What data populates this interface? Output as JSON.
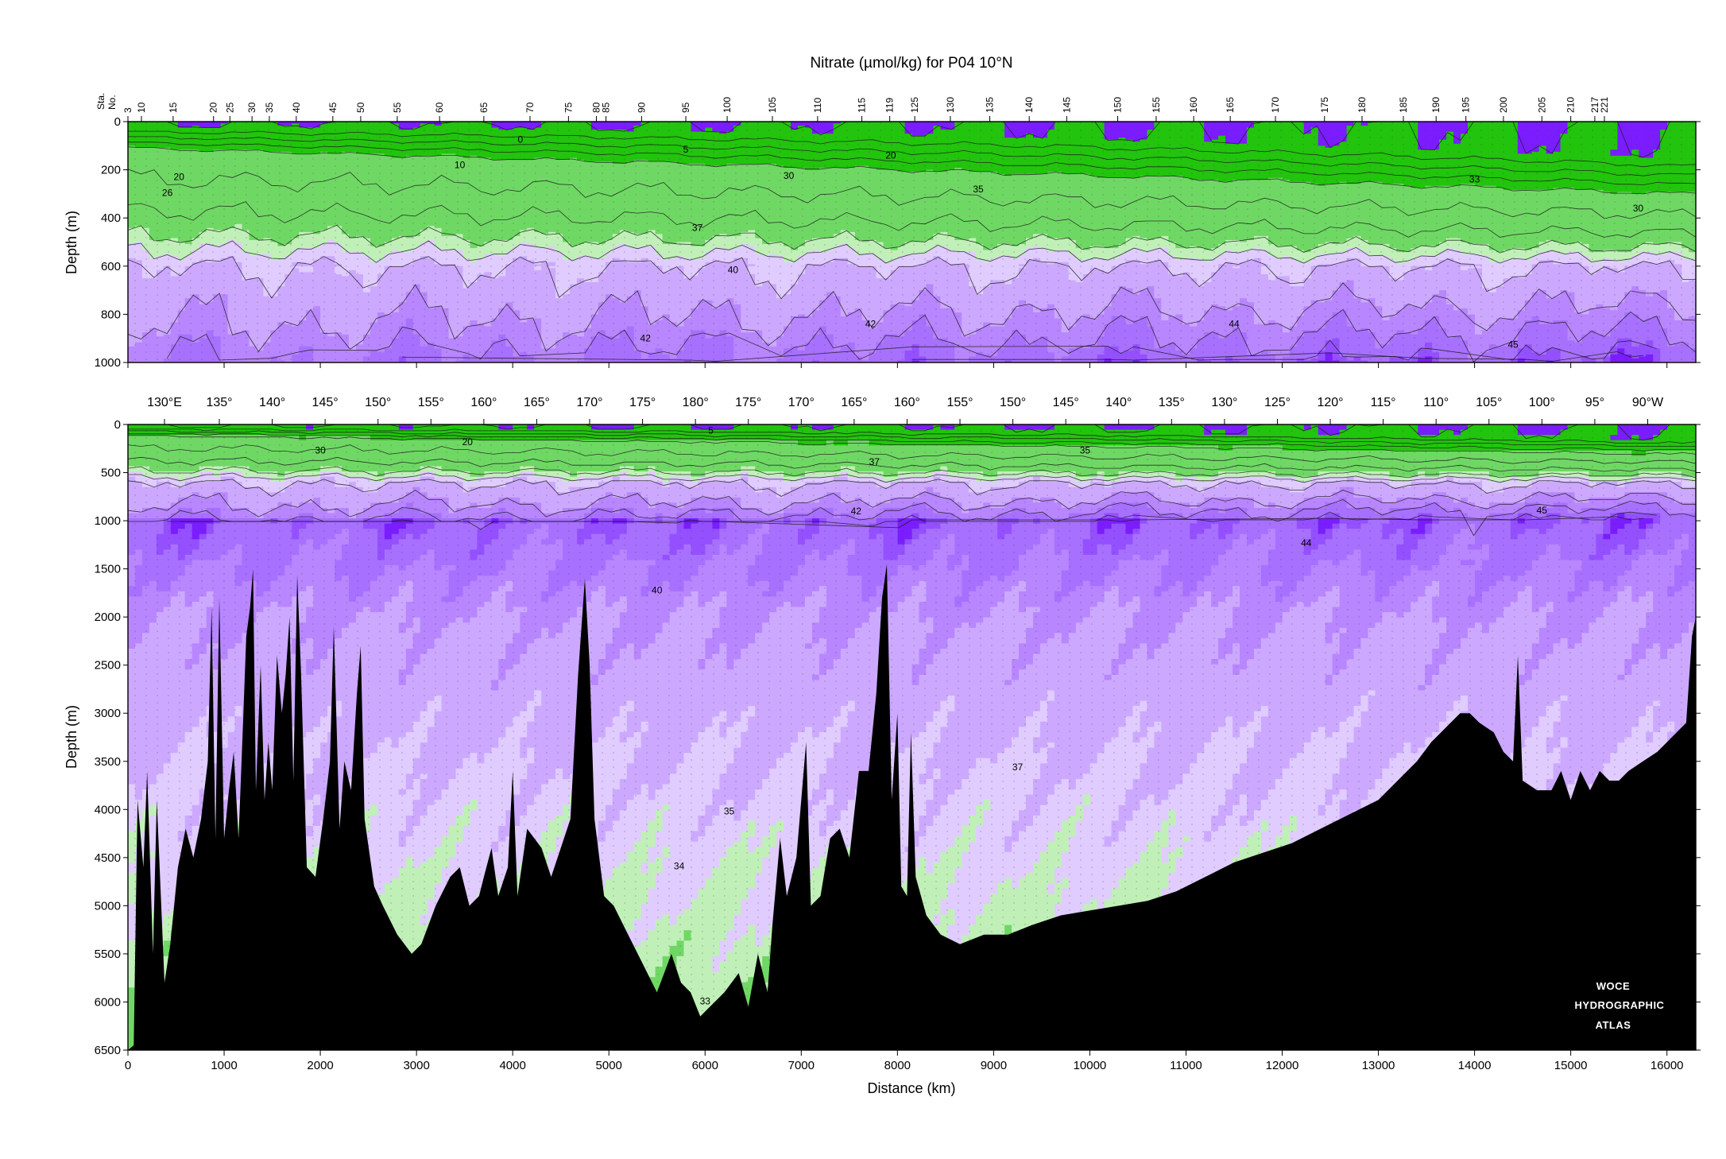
{
  "chart_data": {
    "type": "contour section",
    "title": "Nitrate (µmol/kg) for P04 10°N",
    "xlabel": "Distance (km)",
    "ylabel": "Depth (m)",
    "station_header": [
      "Sta.",
      "No."
    ],
    "stations": [
      {
        "label": "3",
        "km": 0
      },
      {
        "label": "10",
        "km": 140
      },
      {
        "label": "15",
        "km": 470
      },
      {
        "label": "20",
        "km": 890
      },
      {
        "label": "25",
        "km": 1060
      },
      {
        "label": "30",
        "km": 1290
      },
      {
        "label": "35",
        "km": 1470
      },
      {
        "label": "40",
        "km": 1750
      },
      {
        "label": "45",
        "km": 2130
      },
      {
        "label": "50",
        "km": 2420
      },
      {
        "label": "55",
        "km": 2800
      },
      {
        "label": "60",
        "km": 3240
      },
      {
        "label": "65",
        "km": 3700
      },
      {
        "label": "70",
        "km": 4180
      },
      {
        "label": "75",
        "km": 4580
      },
      {
        "label": "80",
        "km": 4870
      },
      {
        "label": "85",
        "km": 4970
      },
      {
        "label": "90",
        "km": 5340
      },
      {
        "label": "95",
        "km": 5800
      },
      {
        "label": "100",
        "km": 6230
      },
      {
        "label": "105",
        "km": 6700
      },
      {
        "label": "110",
        "km": 7170
      },
      {
        "label": "115",
        "km": 7630
      },
      {
        "label": "119",
        "km": 7920
      },
      {
        "label": "125",
        "km": 8180
      },
      {
        "label": "130",
        "km": 8550
      },
      {
        "label": "135",
        "km": 8960
      },
      {
        "label": "140",
        "km": 9370
      },
      {
        "label": "145",
        "km": 9760
      },
      {
        "label": "150",
        "km": 10290
      },
      {
        "label": "155",
        "km": 10690
      },
      {
        "label": "160",
        "km": 11080
      },
      {
        "label": "165",
        "km": 11460
      },
      {
        "label": "170",
        "km": 11930
      },
      {
        "label": "175",
        "km": 12440
      },
      {
        "label": "180",
        "km": 12830
      },
      {
        "label": "185",
        "km": 13260
      },
      {
        "label": "190",
        "km": 13600
      },
      {
        "label": "195",
        "km": 13910
      },
      {
        "label": "200",
        "km": 14300
      },
      {
        "label": "205",
        "km": 14700
      },
      {
        "label": "210",
        "km": 15000
      },
      {
        "label": "217",
        "km": 15250
      },
      {
        "label": "221",
        "km": 15350
      }
    ],
    "longitudes": [
      {
        "label": "130°E",
        "km": 380
      },
      {
        "label": "135°",
        "km": 950
      },
      {
        "label": "140°",
        "km": 1500
      },
      {
        "label": "145°",
        "km": 2050
      },
      {
        "label": "150°",
        "km": 2600
      },
      {
        "label": "155°",
        "km": 3150
      },
      {
        "label": "160°",
        "km": 3700
      },
      {
        "label": "165°",
        "km": 4250
      },
      {
        "label": "170°",
        "km": 4800
      },
      {
        "label": "175°",
        "km": 5350
      },
      {
        "label": "180°",
        "km": 5900
      },
      {
        "label": "175°",
        "km": 6450
      },
      {
        "label": "170°",
        "km": 7000
      },
      {
        "label": "165°",
        "km": 7550
      },
      {
        "label": "160°",
        "km": 8100
      },
      {
        "label": "155°",
        "km": 8650
      },
      {
        "label": "150°",
        "km": 9200
      },
      {
        "label": "145°",
        "km": 9750
      },
      {
        "label": "140°",
        "km": 10300
      },
      {
        "label": "135°",
        "km": 10850
      },
      {
        "label": "130°",
        "km": 11400
      },
      {
        "label": "125°",
        "km": 11950
      },
      {
        "label": "120°",
        "km": 12500
      },
      {
        "label": "115°",
        "km": 13050
      },
      {
        "label": "110°",
        "km": 13600
      },
      {
        "label": "105°",
        "km": 14150
      },
      {
        "label": "100°",
        "km": 14700
      },
      {
        "label": "95°",
        "km": 15250
      },
      {
        "label": "90°W",
        "km": 15800
      }
    ],
    "xlim": [
      0,
      16300
    ],
    "xticks": [
      0,
      1000,
      2000,
      3000,
      4000,
      5000,
      6000,
      7000,
      8000,
      9000,
      10000,
      11000,
      12000,
      13000,
      14000,
      15000,
      16000
    ],
    "panels": [
      {
        "name": "upper",
        "ylim": [
          0,
          1000
        ],
        "yticks": [
          0,
          200,
          400,
          600,
          800,
          1000
        ]
      },
      {
        "name": "lower",
        "ylim": [
          0,
          6500
        ],
        "yticks": [
          0,
          500,
          1000,
          1500,
          2000,
          2500,
          3000,
          3500,
          4000,
          4500,
          5000,
          5500,
          6000,
          6500
        ]
      }
    ],
    "color_bands": [
      {
        "range": [
          0,
          20
        ],
        "color": "#22c40d"
      },
      {
        "range": [
          20,
          33
        ],
        "color": "#6fd864"
      },
      {
        "range": [
          33,
          35
        ],
        "color": "#c0f0b8"
      },
      {
        "range": [
          35,
          37
        ],
        "color": "#e0ccff"
      },
      {
        "range": [
          37,
          40
        ],
        "color": "#cca9ff"
      },
      {
        "range": [
          40,
          42
        ],
        "color": "#b886ff"
      },
      {
        "range": [
          42,
          44
        ],
        "color": "#a870ff"
      },
      {
        "range": [
          44,
          45
        ],
        "color": "#9450ff"
      },
      {
        "range": [
          45,
          46
        ],
        "color": "#7a1dff"
      }
    ],
    "seafloor_color": "#000000",
    "upper_contour_labels": [
      {
        "text": "0",
        "km": 4080,
        "depth": 75
      },
      {
        "text": "5",
        "km": 5800,
        "depth": 115
      },
      {
        "text": "10",
        "km": 3450,
        "depth": 180
      },
      {
        "text": "20",
        "km": 7930,
        "depth": 140
      },
      {
        "text": "20",
        "km": 530,
        "depth": 230
      },
      {
        "text": "26",
        "km": 410,
        "depth": 295
      },
      {
        "text": "30",
        "km": 6870,
        "depth": 225
      },
      {
        "text": "33",
        "km": 14000,
        "depth": 240
      },
      {
        "text": "35",
        "km": 8840,
        "depth": 280
      },
      {
        "text": "30",
        "km": 15700,
        "depth": 360
      },
      {
        "text": "37",
        "km": 5920,
        "depth": 440
      },
      {
        "text": "40",
        "km": 6290,
        "depth": 615
      },
      {
        "text": "42",
        "km": 5380,
        "depth": 900
      },
      {
        "text": "42",
        "km": 7720,
        "depth": 840
      },
      {
        "text": "44",
        "km": 11500,
        "depth": 840
      },
      {
        "text": "45",
        "km": 14400,
        "depth": 925
      }
    ],
    "lower_contour_labels": [
      {
        "text": "5",
        "km": 6060,
        "depth": 60
      },
      {
        "text": "20",
        "km": 3530,
        "depth": 180
      },
      {
        "text": "30",
        "km": 2000,
        "depth": 270
      },
      {
        "text": "37",
        "km": 7760,
        "depth": 390
      },
      {
        "text": "35",
        "km": 9950,
        "depth": 270
      },
      {
        "text": "42",
        "km": 7570,
        "depth": 900
      },
      {
        "text": "45",
        "km": 14700,
        "depth": 890
      },
      {
        "text": "44",
        "km": 12250,
        "depth": 1230
      },
      {
        "text": "40",
        "km": 5500,
        "depth": 1720
      },
      {
        "text": "37",
        "km": 9250,
        "depth": 3560
      },
      {
        "text": "35",
        "km": 6250,
        "depth": 4020
      },
      {
        "text": "34",
        "km": 5730,
        "depth": 4590
      },
      {
        "text": "33",
        "km": 6000,
        "depth": 5990
      }
    ],
    "bathymetry": [
      [
        0,
        6500
      ],
      [
        60,
        6450
      ],
      [
        100,
        3900
      ],
      [
        160,
        4600
      ],
      [
        200,
        3600
      ],
      [
        260,
        5500
      ],
      [
        300,
        3900
      ],
      [
        380,
        5800
      ],
      [
        440,
        5400
      ],
      [
        520,
        4600
      ],
      [
        600,
        4200
      ],
      [
        680,
        4500
      ],
      [
        760,
        4100
      ],
      [
        830,
        3500
      ],
      [
        870,
        1900
      ],
      [
        910,
        4300
      ],
      [
        950,
        1800
      ],
      [
        1000,
        4300
      ],
      [
        1050,
        3800
      ],
      [
        1100,
        3400
      ],
      [
        1150,
        4300
      ],
      [
        1200,
        3000
      ],
      [
        1230,
        2200
      ],
      [
        1270,
        1900
      ],
      [
        1300,
        1500
      ],
      [
        1330,
        3800
      ],
      [
        1380,
        2500
      ],
      [
        1420,
        3900
      ],
      [
        1460,
        3300
      ],
      [
        1500,
        3800
      ],
      [
        1550,
        2400
      ],
      [
        1600,
        3000
      ],
      [
        1640,
        2600
      ],
      [
        1680,
        2000
      ],
      [
        1720,
        3700
      ],
      [
        1760,
        1560
      ],
      [
        1800,
        2600
      ],
      [
        1860,
        4600
      ],
      [
        1950,
        4700
      ],
      [
        2030,
        4100
      ],
      [
        2100,
        3500
      ],
      [
        2140,
        2100
      ],
      [
        2200,
        4200
      ],
      [
        2250,
        3500
      ],
      [
        2320,
        3800
      ],
      [
        2380,
        2800
      ],
      [
        2420,
        2300
      ],
      [
        2460,
        4100
      ],
      [
        2560,
        4800
      ],
      [
        2650,
        5000
      ],
      [
        2800,
        5300
      ],
      [
        2950,
        5500
      ],
      [
        3050,
        5400
      ],
      [
        3200,
        5000
      ],
      [
        3350,
        4700
      ],
      [
        3450,
        4600
      ],
      [
        3550,
        5000
      ],
      [
        3650,
        4900
      ],
      [
        3700,
        4700
      ],
      [
        3780,
        4400
      ],
      [
        3850,
        4900
      ],
      [
        3950,
        4600
      ],
      [
        4000,
        3600
      ],
      [
        4050,
        4900
      ],
      [
        4150,
        4200
      ],
      [
        4300,
        4400
      ],
      [
        4400,
        4700
      ],
      [
        4500,
        4400
      ],
      [
        4600,
        4100
      ],
      [
        4680,
        2600
      ],
      [
        4750,
        1600
      ],
      [
        4800,
        2500
      ],
      [
        4850,
        4100
      ],
      [
        4950,
        4900
      ],
      [
        5050,
        5000
      ],
      [
        5200,
        5300
      ],
      [
        5350,
        5600
      ],
      [
        5500,
        5900
      ],
      [
        5650,
        5500
      ],
      [
        5750,
        5800
      ],
      [
        5850,
        5900
      ],
      [
        5950,
        6150
      ],
      [
        6050,
        6050
      ],
      [
        6200,
        5900
      ],
      [
        6350,
        5700
      ],
      [
        6450,
        6050
      ],
      [
        6550,
        5500
      ],
      [
        6650,
        5900
      ],
      [
        6700,
        5200
      ],
      [
        6780,
        4300
      ],
      [
        6850,
        4900
      ],
      [
        6950,
        4500
      ],
      [
        7050,
        3300
      ],
      [
        7100,
        5000
      ],
      [
        7200,
        4900
      ],
      [
        7300,
        4300
      ],
      [
        7400,
        4200
      ],
      [
        7500,
        4500
      ],
      [
        7600,
        3600
      ],
      [
        7700,
        3600
      ],
      [
        7780,
        2800
      ],
      [
        7840,
        1800
      ],
      [
        7890,
        1450
      ],
      [
        7940,
        3900
      ],
      [
        8000,
        3000
      ],
      [
        8040,
        4800
      ],
      [
        8100,
        4900
      ],
      [
        8140,
        3200
      ],
      [
        8190,
        4700
      ],
      [
        8300,
        5100
      ],
      [
        8450,
        5300
      ],
      [
        8650,
        5400
      ],
      [
        8900,
        5300
      ],
      [
        9150,
        5300
      ],
      [
        9400,
        5200
      ],
      [
        9700,
        5100
      ],
      [
        10000,
        5050
      ],
      [
        10300,
        5000
      ],
      [
        10600,
        4950
      ],
      [
        10900,
        4850
      ],
      [
        11200,
        4700
      ],
      [
        11500,
        4550
      ],
      [
        11800,
        4450
      ],
      [
        12100,
        4350
      ],
      [
        12400,
        4200
      ],
      [
        12700,
        4050
      ],
      [
        13000,
        3900
      ],
      [
        13200,
        3700
      ],
      [
        13400,
        3500
      ],
      [
        13550,
        3300
      ],
      [
        13700,
        3150
      ],
      [
        13850,
        3000
      ],
      [
        13950,
        3000
      ],
      [
        14050,
        3100
      ],
      [
        14200,
        3200
      ],
      [
        14300,
        3400
      ],
      [
        14400,
        3500
      ],
      [
        14450,
        2400
      ],
      [
        14500,
        3700
      ],
      [
        14650,
        3800
      ],
      [
        14800,
        3800
      ],
      [
        14900,
        3600
      ],
      [
        15000,
        3900
      ],
      [
        15100,
        3600
      ],
      [
        15200,
        3800
      ],
      [
        15300,
        3600
      ],
      [
        15400,
        3700
      ],
      [
        15500,
        3700
      ],
      [
        15600,
        3600
      ],
      [
        15750,
        3500
      ],
      [
        15900,
        3400
      ],
      [
        16000,
        3300
      ],
      [
        16100,
        3200
      ],
      [
        16200,
        3100
      ],
      [
        16260,
        2200
      ],
      [
        16300,
        2000
      ],
      [
        16300,
        6500
      ]
    ],
    "logo": [
      "WOCE",
      "HYDROGRAPHIC",
      "ATLAS"
    ]
  }
}
